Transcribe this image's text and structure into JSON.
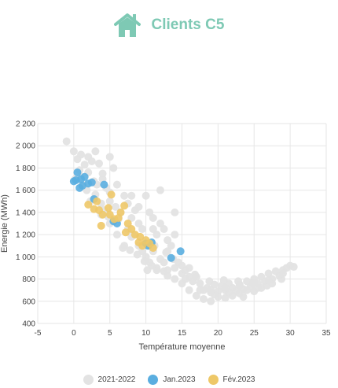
{
  "header": {
    "title": "Clients C5",
    "icon": "house-icon",
    "accent": "#7ec9b4"
  },
  "chart_data": {
    "type": "scatter",
    "title": "",
    "xlabel": "Température moyenne",
    "ylabel": "Energie (MWh)",
    "xlim": [
      -5,
      35
    ],
    "ylim": [
      400,
      2200
    ],
    "x_ticks": [
      "-5",
      "0",
      "5",
      "10",
      "15",
      "20",
      "25",
      "30",
      "35"
    ],
    "y_ticks": [
      "2 200",
      "2 000",
      "1 800",
      "1 600",
      "1 400",
      "1 200",
      "1 000",
      "800",
      "600",
      "400"
    ],
    "grid": true,
    "legend_position": "bottom",
    "series": [
      {
        "name": "2021-2022",
        "color": "#e3e3e3",
        "points": [
          [
            -1,
            2040
          ],
          [
            0,
            1950
          ],
          [
            0.5,
            1880
          ],
          [
            1,
            1920
          ],
          [
            1.5,
            1830
          ],
          [
            2,
            1900
          ],
          [
            2.5,
            1860
          ],
          [
            3,
            1950
          ],
          [
            0.2,
            1700
          ],
          [
            0.8,
            1780
          ],
          [
            1.2,
            1650
          ],
          [
            2,
            1760
          ],
          [
            2.8,
            1680
          ],
          [
            3.5,
            1840
          ],
          [
            4,
            1700
          ],
          [
            4.5,
            1620
          ],
          [
            5,
            1580
          ],
          [
            5.5,
            1800
          ],
          [
            6,
            1650
          ],
          [
            3,
            1560
          ],
          [
            3.8,
            1480
          ],
          [
            4.2,
            1420
          ],
          [
            5,
            1500
          ],
          [
            5.8,
            1450
          ],
          [
            6.5,
            1400
          ],
          [
            7,
            1550
          ],
          [
            7.5,
            1480
          ],
          [
            8,
            1350
          ],
          [
            8.5,
            1420
          ],
          [
            9,
            1300
          ],
          [
            9.5,
            1250
          ],
          [
            10,
            1550
          ],
          [
            10.5,
            1400
          ],
          [
            11,
            1350
          ],
          [
            11.5,
            1200
          ],
          [
            12,
            1300
          ],
          [
            12.5,
            1250
          ],
          [
            13,
            1150
          ],
          [
            13.5,
            1100
          ],
          [
            14,
            1200
          ],
          [
            5,
            1300
          ],
          [
            6,
            1200
          ],
          [
            7,
            1100
          ],
          [
            7.5,
            1250
          ],
          [
            8,
            1180
          ],
          [
            9,
            1100
          ],
          [
            9.5,
            1050
          ],
          [
            10,
            1000
          ],
          [
            10.5,
            950
          ],
          [
            11,
            1050
          ],
          [
            11.5,
            900
          ],
          [
            12,
            980
          ],
          [
            12.5,
            950
          ],
          [
            13,
            880
          ],
          [
            14,
            900
          ],
          [
            14.5,
            950
          ],
          [
            15,
            850
          ],
          [
            15.5,
            800
          ],
          [
            16,
            900
          ],
          [
            16.5,
            780
          ],
          [
            17,
            820
          ],
          [
            17.5,
            760
          ],
          [
            18,
            700
          ],
          [
            18.5,
            720
          ],
          [
            19,
            680
          ],
          [
            19.5,
            750
          ],
          [
            20,
            690
          ],
          [
            20.5,
            740
          ],
          [
            21,
            700
          ],
          [
            21.5,
            760
          ],
          [
            22,
            720
          ],
          [
            22.5,
            690
          ],
          [
            23,
            750
          ],
          [
            23.5,
            710
          ],
          [
            24,
            780
          ],
          [
            24.5,
            730
          ],
          [
            25,
            800
          ],
          [
            25.5,
            760
          ],
          [
            26,
            820
          ],
          [
            26.5,
            780
          ],
          [
            27,
            850
          ],
          [
            27.5,
            800
          ],
          [
            28,
            870
          ],
          [
            28.5,
            830
          ],
          [
            29,
            880
          ],
          [
            29.5,
            900
          ],
          [
            30,
            920
          ],
          [
            30.5,
            910
          ],
          [
            17,
            650
          ],
          [
            18,
            620
          ],
          [
            19,
            600
          ],
          [
            20,
            640
          ],
          [
            21,
            630
          ],
          [
            22,
            650
          ],
          [
            23,
            670
          ],
          [
            24,
            700
          ],
          [
            25,
            690
          ],
          [
            26,
            720
          ],
          [
            16,
            700
          ],
          [
            15,
            760
          ],
          [
            14,
            800
          ],
          [
            13,
            830
          ],
          [
            12.5,
            870
          ],
          [
            11.5,
            880
          ],
          [
            10.8,
            920
          ],
          [
            10.2,
            880
          ],
          [
            9.8,
            960
          ],
          [
            8.8,
            1020
          ],
          [
            7.8,
            1060
          ],
          [
            6.8,
            1080
          ],
          [
            3.8,
            1380
          ],
          [
            4.8,
            1360
          ],
          [
            2.3,
            1500
          ],
          [
            1.8,
            1600
          ],
          [
            1,
            1720
          ],
          [
            3.2,
            1650
          ],
          [
            6.2,
            1340
          ],
          [
            8.2,
            1200
          ],
          [
            11.2,
            1100
          ],
          [
            12.8,
            1040
          ],
          [
            13.8,
            980
          ],
          [
            15.5,
            880
          ],
          [
            16.8,
            840
          ],
          [
            18.8,
            780
          ],
          [
            20.8,
            790
          ],
          [
            22.8,
            780
          ],
          [
            24.8,
            760
          ],
          [
            26.8,
            740
          ],
          [
            28.8,
            800
          ],
          [
            17.5,
            700
          ],
          [
            19.5,
            660
          ],
          [
            21.5,
            680
          ],
          [
            23.5,
            640
          ],
          [
            25.5,
            720
          ],
          [
            27.5,
            760
          ],
          [
            14,
            1400
          ],
          [
            12,
            1600
          ],
          [
            5,
            1900
          ],
          [
            4,
            1750
          ],
          [
            9,
            1450
          ],
          [
            8,
            1550
          ],
          [
            11,
            1250
          ],
          [
            13,
            1050
          ],
          [
            15,
            920
          ],
          [
            16,
            820
          ],
          [
            19,
            700
          ],
          [
            21,
            720
          ],
          [
            23,
            740
          ],
          [
            25,
            770
          ],
          [
            27,
            790
          ],
          [
            29,
            850
          ]
        ]
      },
      {
        "name": "Jan.2023",
        "color": "#5aaee0",
        "points": [
          [
            0,
            1680
          ],
          [
            0.5,
            1760
          ],
          [
            1,
            1700
          ],
          [
            1.5,
            1720
          ],
          [
            2,
            1660
          ],
          [
            0.3,
            1690
          ],
          [
            1.2,
            1640
          ],
          [
            2.5,
            1670
          ],
          [
            4.2,
            1650
          ],
          [
            2.8,
            1520
          ],
          [
            5.5,
            1320
          ],
          [
            6,
            1300
          ],
          [
            10,
            1120
          ],
          [
            10.3,
            1100
          ],
          [
            10.8,
            1130
          ],
          [
            13.5,
            990
          ],
          [
            14.8,
            1050
          ],
          [
            0.8,
            1620
          ]
        ]
      },
      {
        "name": "Fév.2023",
        "color": "#eec868",
        "points": [
          [
            2,
            1470
          ],
          [
            2.8,
            1430
          ],
          [
            3.2,
            1500
          ],
          [
            3.5,
            1420
          ],
          [
            4,
            1380
          ],
          [
            4.8,
            1440
          ],
          [
            5.2,
            1560
          ],
          [
            5.6,
            1340
          ],
          [
            6.5,
            1400
          ],
          [
            7,
            1460
          ],
          [
            7.5,
            1300
          ],
          [
            8,
            1250
          ],
          [
            8.5,
            1200
          ],
          [
            9,
            1130
          ],
          [
            9.5,
            1100
          ],
          [
            10,
            1150
          ],
          [
            11,
            1080
          ],
          [
            3.8,
            1280
          ],
          [
            5,
            1380
          ],
          [
            6.2,
            1350
          ],
          [
            7.2,
            1220
          ],
          [
            9.2,
            1180
          ],
          [
            10.5,
            1120
          ]
        ]
      }
    ]
  }
}
